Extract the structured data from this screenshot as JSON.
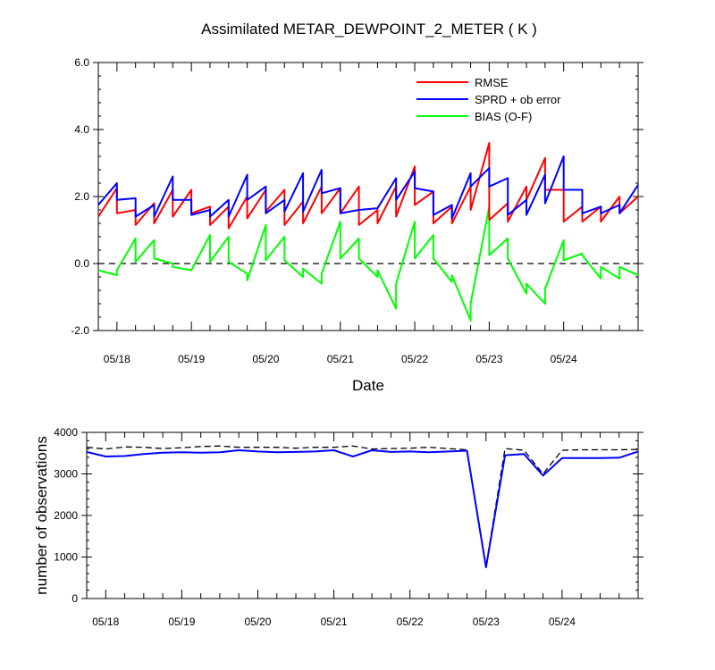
{
  "chart_data": [
    {
      "type": "line",
      "title": "Assimilated METAR_DEWPOINT_2_METER ( K )",
      "xlabel": "Date",
      "ylabel": "",
      "ylim": [
        -2.0,
        6.0
      ],
      "yticks": [
        "6.0",
        "4.0",
        "2.0",
        "0.0",
        "-2.0"
      ],
      "xticks": [
        "05/18",
        "05/19",
        "05/20",
        "05/21",
        "05/22",
        "05/23",
        "05/24"
      ],
      "reference_line": 0.0,
      "legend_position": "top-right",
      "colors": {
        "RMSE": "#ff0000",
        "SPRD + ob error": "#0000ff",
        "BIAS (O-F)": "#00ff00"
      },
      "series": [
        {
          "name": "RMSE",
          "x": [
            0.0,
            0.25,
            0.25,
            0.5,
            0.5,
            0.75,
            0.75,
            1.0,
            1.0,
            1.25,
            1.25,
            1.5,
            1.5,
            1.75,
            1.75,
            2.0,
            2.0,
            2.25,
            2.25,
            2.5,
            2.5,
            2.75,
            2.75,
            3.0,
            3.0,
            3.25,
            3.25,
            3.5,
            3.5,
            3.75,
            3.75,
            4.0,
            4.0,
            4.25,
            4.25,
            4.5,
            4.5,
            4.75,
            4.75,
            5.0,
            5.0,
            5.25,
            5.25,
            5.5,
            5.5,
            5.75,
            5.75,
            6.0,
            6.0,
            6.25,
            6.25,
            6.5,
            6.5,
            6.75,
            6.75,
            7.0,
            7.0,
            7.25
          ],
          "values": [
            1.4,
            2.25,
            1.5,
            1.6,
            1.15,
            1.8,
            1.2,
            2.2,
            1.4,
            2.2,
            1.5,
            1.7,
            1.15,
            1.7,
            1.05,
            2.0,
            1.35,
            2.2,
            1.55,
            2.2,
            1.15,
            1.85,
            1.2,
            2.3,
            1.5,
            2.25,
            1.5,
            2.3,
            1.15,
            1.6,
            1.2,
            2.3,
            1.4,
            2.9,
            1.75,
            2.15,
            1.2,
            1.7,
            1.2,
            2.3,
            1.6,
            3.6,
            1.3,
            1.8,
            1.25,
            2.3,
            1.9,
            3.15,
            2.2,
            2.2,
            1.25,
            1.7,
            1.25,
            1.7,
            1.25,
            2.0,
            1.5,
            2.0
          ]
        },
        {
          "name": "SPRD + ob error",
          "x": [
            0.0,
            0.25,
            0.25,
            0.5,
            0.5,
            0.75,
            0.75,
            1.0,
            1.0,
            1.25,
            1.25,
            1.5,
            1.5,
            1.75,
            1.75,
            2.0,
            2.0,
            2.25,
            2.25,
            2.5,
            2.5,
            2.75,
            2.75,
            3.0,
            3.0,
            3.25,
            3.25,
            3.5,
            3.5,
            3.75,
            3.75,
            4.0,
            4.0,
            4.25,
            4.25,
            4.5,
            4.5,
            4.75,
            4.75,
            5.0,
            5.0,
            5.25,
            5.25,
            5.5,
            5.5,
            5.75,
            5.75,
            6.0,
            6.0,
            6.25,
            6.25,
            6.5,
            6.5,
            6.75,
            6.75,
            7.0,
            7.0,
            7.25
          ],
          "values": [
            1.75,
            2.4,
            1.9,
            1.95,
            1.4,
            1.75,
            1.4,
            2.6,
            1.9,
            1.9,
            1.45,
            1.6,
            1.4,
            1.9,
            1.4,
            2.65,
            1.9,
            2.3,
            1.5,
            1.9,
            1.55,
            2.7,
            1.55,
            2.8,
            2.1,
            2.25,
            1.5,
            1.6,
            1.6,
            1.65,
            1.65,
            2.55,
            1.9,
            2.75,
            2.25,
            2.15,
            1.45,
            1.75,
            1.35,
            2.7,
            2.3,
            2.85,
            2.3,
            2.55,
            1.45,
            1.9,
            1.45,
            2.65,
            1.8,
            3.2,
            2.2,
            2.2,
            1.5,
            1.7,
            1.5,
            1.75,
            1.5,
            2.35
          ]
        },
        {
          "name": "BIAS (O-F)",
          "x": [
            0.0,
            0.25,
            0.25,
            0.5,
            0.5,
            0.75,
            0.75,
            1.0,
            1.0,
            1.25,
            1.25,
            1.5,
            1.5,
            1.75,
            1.75,
            2.0,
            2.0,
            2.25,
            2.25,
            2.5,
            2.5,
            2.75,
            2.75,
            3.0,
            3.0,
            3.25,
            3.25,
            3.5,
            3.5,
            3.75,
            3.75,
            4.0,
            4.0,
            4.25,
            4.25,
            4.5,
            4.5,
            4.75,
            4.75,
            5.0,
            5.0,
            5.25,
            5.25,
            5.5,
            5.5,
            5.75,
            5.75,
            6.0,
            6.0,
            6.25,
            6.25,
            6.5,
            6.5,
            6.75,
            6.75,
            7.0,
            7.0,
            7.25
          ],
          "values": [
            -0.2,
            -0.35,
            -0.2,
            0.75,
            0.05,
            0.7,
            0.15,
            0.0,
            -0.1,
            -0.2,
            -0.2,
            0.85,
            0.05,
            0.8,
            0.05,
            -0.3,
            -0.5,
            1.15,
            0.1,
            0.8,
            0.1,
            -0.4,
            -0.15,
            -0.6,
            -0.3,
            1.25,
            0.15,
            0.75,
            0.15,
            -0.4,
            -0.2,
            -1.35,
            -0.6,
            1.25,
            0.15,
            0.85,
            0.15,
            -0.55,
            -0.35,
            -1.7,
            -1.2,
            1.7,
            0.25,
            0.75,
            0.15,
            -0.9,
            -0.6,
            -1.2,
            -0.75,
            0.7,
            0.1,
            0.3,
            0.25,
            -0.45,
            -0.1,
            -0.45,
            -0.1,
            -0.35
          ]
        }
      ]
    },
    {
      "type": "line",
      "title": "",
      "xlabel": "",
      "ylabel": "number of observations",
      "ylim": [
        0,
        4000
      ],
      "yticks": [
        "4000",
        "3000",
        "2000",
        "1000",
        "0"
      ],
      "xticks": [
        "05/18",
        "05/19",
        "05/20",
        "05/21",
        "05/22",
        "05/23",
        "05/24"
      ],
      "colors": {
        "used": "#0000ff",
        "possible": "#000000"
      },
      "series": [
        {
          "x": [
            0.0,
            0.25,
            0.5,
            0.75,
            1.0,
            1.25,
            1.5,
            1.75,
            2.0,
            2.25,
            2.5,
            2.75,
            3.0,
            3.25,
            3.5,
            3.75,
            4.0,
            4.25,
            4.5,
            4.75,
            5.0,
            5.25,
            5.5,
            5.75,
            6.0,
            6.25,
            6.5,
            6.75,
            7.0,
            7.25
          ],
          "values": [
            3530,
            3420,
            3430,
            3480,
            3510,
            3520,
            3510,
            3520,
            3570,
            3540,
            3520,
            3530,
            3540,
            3570,
            3420,
            3570,
            3530,
            3540,
            3520,
            3540,
            3560,
            750,
            3450,
            3480,
            2960,
            3380,
            3380,
            3380,
            3390,
            3540
          ]
        },
        {
          "x": [
            0.0,
            0.25,
            0.5,
            0.75,
            1.0,
            1.25,
            1.5,
            1.75,
            2.0,
            2.25,
            2.5,
            2.75,
            3.0,
            3.25,
            3.5,
            3.75,
            4.0,
            4.25,
            4.5,
            4.75,
            5.0,
            5.25,
            5.5,
            5.75,
            6.0,
            6.25,
            6.5,
            6.75,
            7.0,
            7.25
          ],
          "values": [
            3640,
            3600,
            3650,
            3640,
            3610,
            3630,
            3660,
            3670,
            3640,
            3640,
            3640,
            3620,
            3640,
            3640,
            3670,
            3600,
            3610,
            3620,
            3640,
            3610,
            3580,
            780,
            3610,
            3570,
            3000,
            3570,
            3580,
            3580,
            3580,
            3590
          ]
        }
      ]
    }
  ]
}
